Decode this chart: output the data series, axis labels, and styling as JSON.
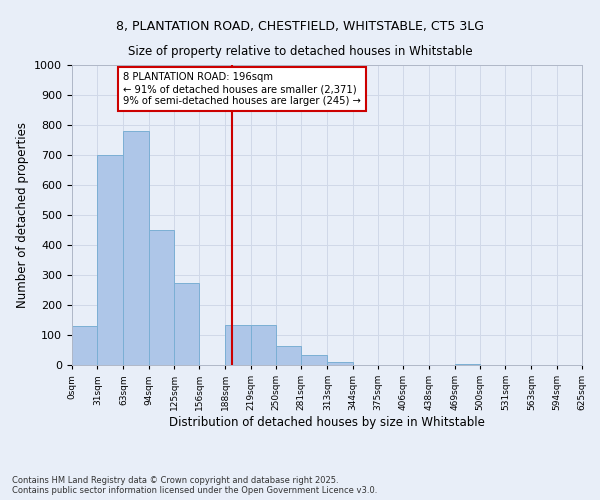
{
  "title_line1": "8, PLANTATION ROAD, CHESTFIELD, WHITSTABLE, CT5 3LG",
  "title_line2": "Size of property relative to detached houses in Whitstable",
  "xlabel": "Distribution of detached houses by size in Whitstable",
  "ylabel": "Number of detached properties",
  "bar_left_edges": [
    0,
    31,
    63,
    94,
    125,
    156,
    188,
    219,
    250,
    281,
    313,
    344,
    375,
    406,
    438,
    469,
    500,
    531,
    563,
    594
  ],
  "bar_heights": [
    130,
    700,
    780,
    450,
    275,
    0,
    135,
    135,
    65,
    35,
    10,
    0,
    0,
    0,
    0,
    5,
    0,
    0,
    0,
    0
  ],
  "bin_width": 31,
  "bar_color": "#aec6e8",
  "bar_edge_color": "#7bafd4",
  "vline_x": 196,
  "vline_color": "#cc0000",
  "annotation_text": "8 PLANTATION ROAD: 196sqm\n← 91% of detached houses are smaller (2,371)\n9% of semi-detached houses are larger (245) →",
  "annotation_box_color": "#ffffff",
  "annotation_box_edge": "#cc0000",
  "ylim": [
    0,
    1000
  ],
  "yticks": [
    0,
    100,
    200,
    300,
    400,
    500,
    600,
    700,
    800,
    900,
    1000
  ],
  "xtick_labels": [
    "0sqm",
    "31sqm",
    "63sqm",
    "94sqm",
    "125sqm",
    "156sqm",
    "188sqm",
    "219sqm",
    "250sqm",
    "281sqm",
    "313sqm",
    "344sqm",
    "375sqm",
    "406sqm",
    "438sqm",
    "469sqm",
    "500sqm",
    "531sqm",
    "563sqm",
    "594sqm",
    "625sqm"
  ],
  "grid_color": "#d0d8e8",
  "bg_color": "#e8eef8",
  "plot_bg_color": "#e8eef8",
  "footer_line1": "Contains HM Land Registry data © Crown copyright and database right 2025.",
  "footer_line2": "Contains public sector information licensed under the Open Government Licence v3.0.",
  "xlim": [
    0,
    625
  ]
}
